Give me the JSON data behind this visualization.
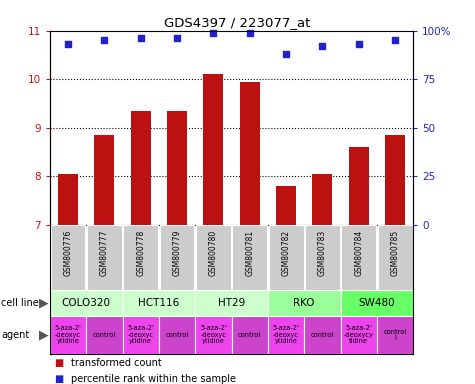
{
  "title": "GDS4397 / 223077_at",
  "samples": [
    "GSM800776",
    "GSM800777",
    "GSM800778",
    "GSM800779",
    "GSM800780",
    "GSM800781",
    "GSM800782",
    "GSM800783",
    "GSM800784",
    "GSM800785"
  ],
  "bar_values": [
    8.05,
    8.85,
    9.35,
    9.35,
    10.1,
    9.95,
    7.8,
    8.05,
    8.6,
    8.85
  ],
  "dot_values": [
    93,
    95,
    96,
    96,
    99,
    99,
    88,
    92,
    93,
    95
  ],
  "ylim_left": [
    7,
    11
  ],
  "ylim_right": [
    0,
    100
  ],
  "yticks_left": [
    7,
    8,
    9,
    10,
    11
  ],
  "yticks_right": [
    0,
    25,
    50,
    75,
    100
  ],
  "bar_color": "#bb1111",
  "dot_color": "#2222cc",
  "cell_lines": [
    {
      "name": "COLO320",
      "start": 0,
      "end": 2,
      "color": "#ccffcc"
    },
    {
      "name": "HCT116",
      "start": 2,
      "end": 4,
      "color": "#ccffcc"
    },
    {
      "name": "HT29",
      "start": 4,
      "end": 6,
      "color": "#ccffcc"
    },
    {
      "name": "RKO",
      "start": 6,
      "end": 8,
      "color": "#99ff99"
    },
    {
      "name": "SW480",
      "start": 8,
      "end": 10,
      "color": "#66ff66"
    }
  ],
  "agents": [
    {
      "name": "5-aza-2'\n-deoxyc\nytidine",
      "start": 0,
      "end": 1
    },
    {
      "name": "control",
      "start": 1,
      "end": 2
    },
    {
      "name": "5-aza-2'\n-deoxyc\nytidine",
      "start": 2,
      "end": 3
    },
    {
      "name": "control",
      "start": 3,
      "end": 4
    },
    {
      "name": "5-aza-2'\n-deoxyc\nytidine",
      "start": 4,
      "end": 5
    },
    {
      "name": "control",
      "start": 5,
      "end": 6
    },
    {
      "name": "5-aza-2'\n-deoxyc\nytidine",
      "start": 6,
      "end": 7
    },
    {
      "name": "control",
      "start": 7,
      "end": 8
    },
    {
      "name": "5-aza-2'\n-deoxycy\ntidine",
      "start": 8,
      "end": 9
    },
    {
      "name": "control\nl",
      "start": 9,
      "end": 10
    }
  ],
  "agent_colors": [
    "#ee44ee",
    "#cc44cc",
    "#ee44ee",
    "#cc44cc",
    "#ee44ee",
    "#cc44cc",
    "#ee44ee",
    "#cc44cc",
    "#ee44ee",
    "#cc44cc"
  ],
  "legend_bar_label": "transformed count",
  "legend_dot_label": "percentile rank within the sample",
  "label_cell_line": "cell line",
  "label_agent": "agent",
  "sample_bg_color": "#cccccc",
  "right_axis_color": "#2222bb",
  "left_axis_color": "#cc1111",
  "fig_width": 4.75,
  "fig_height": 3.84,
  "dpi": 100
}
